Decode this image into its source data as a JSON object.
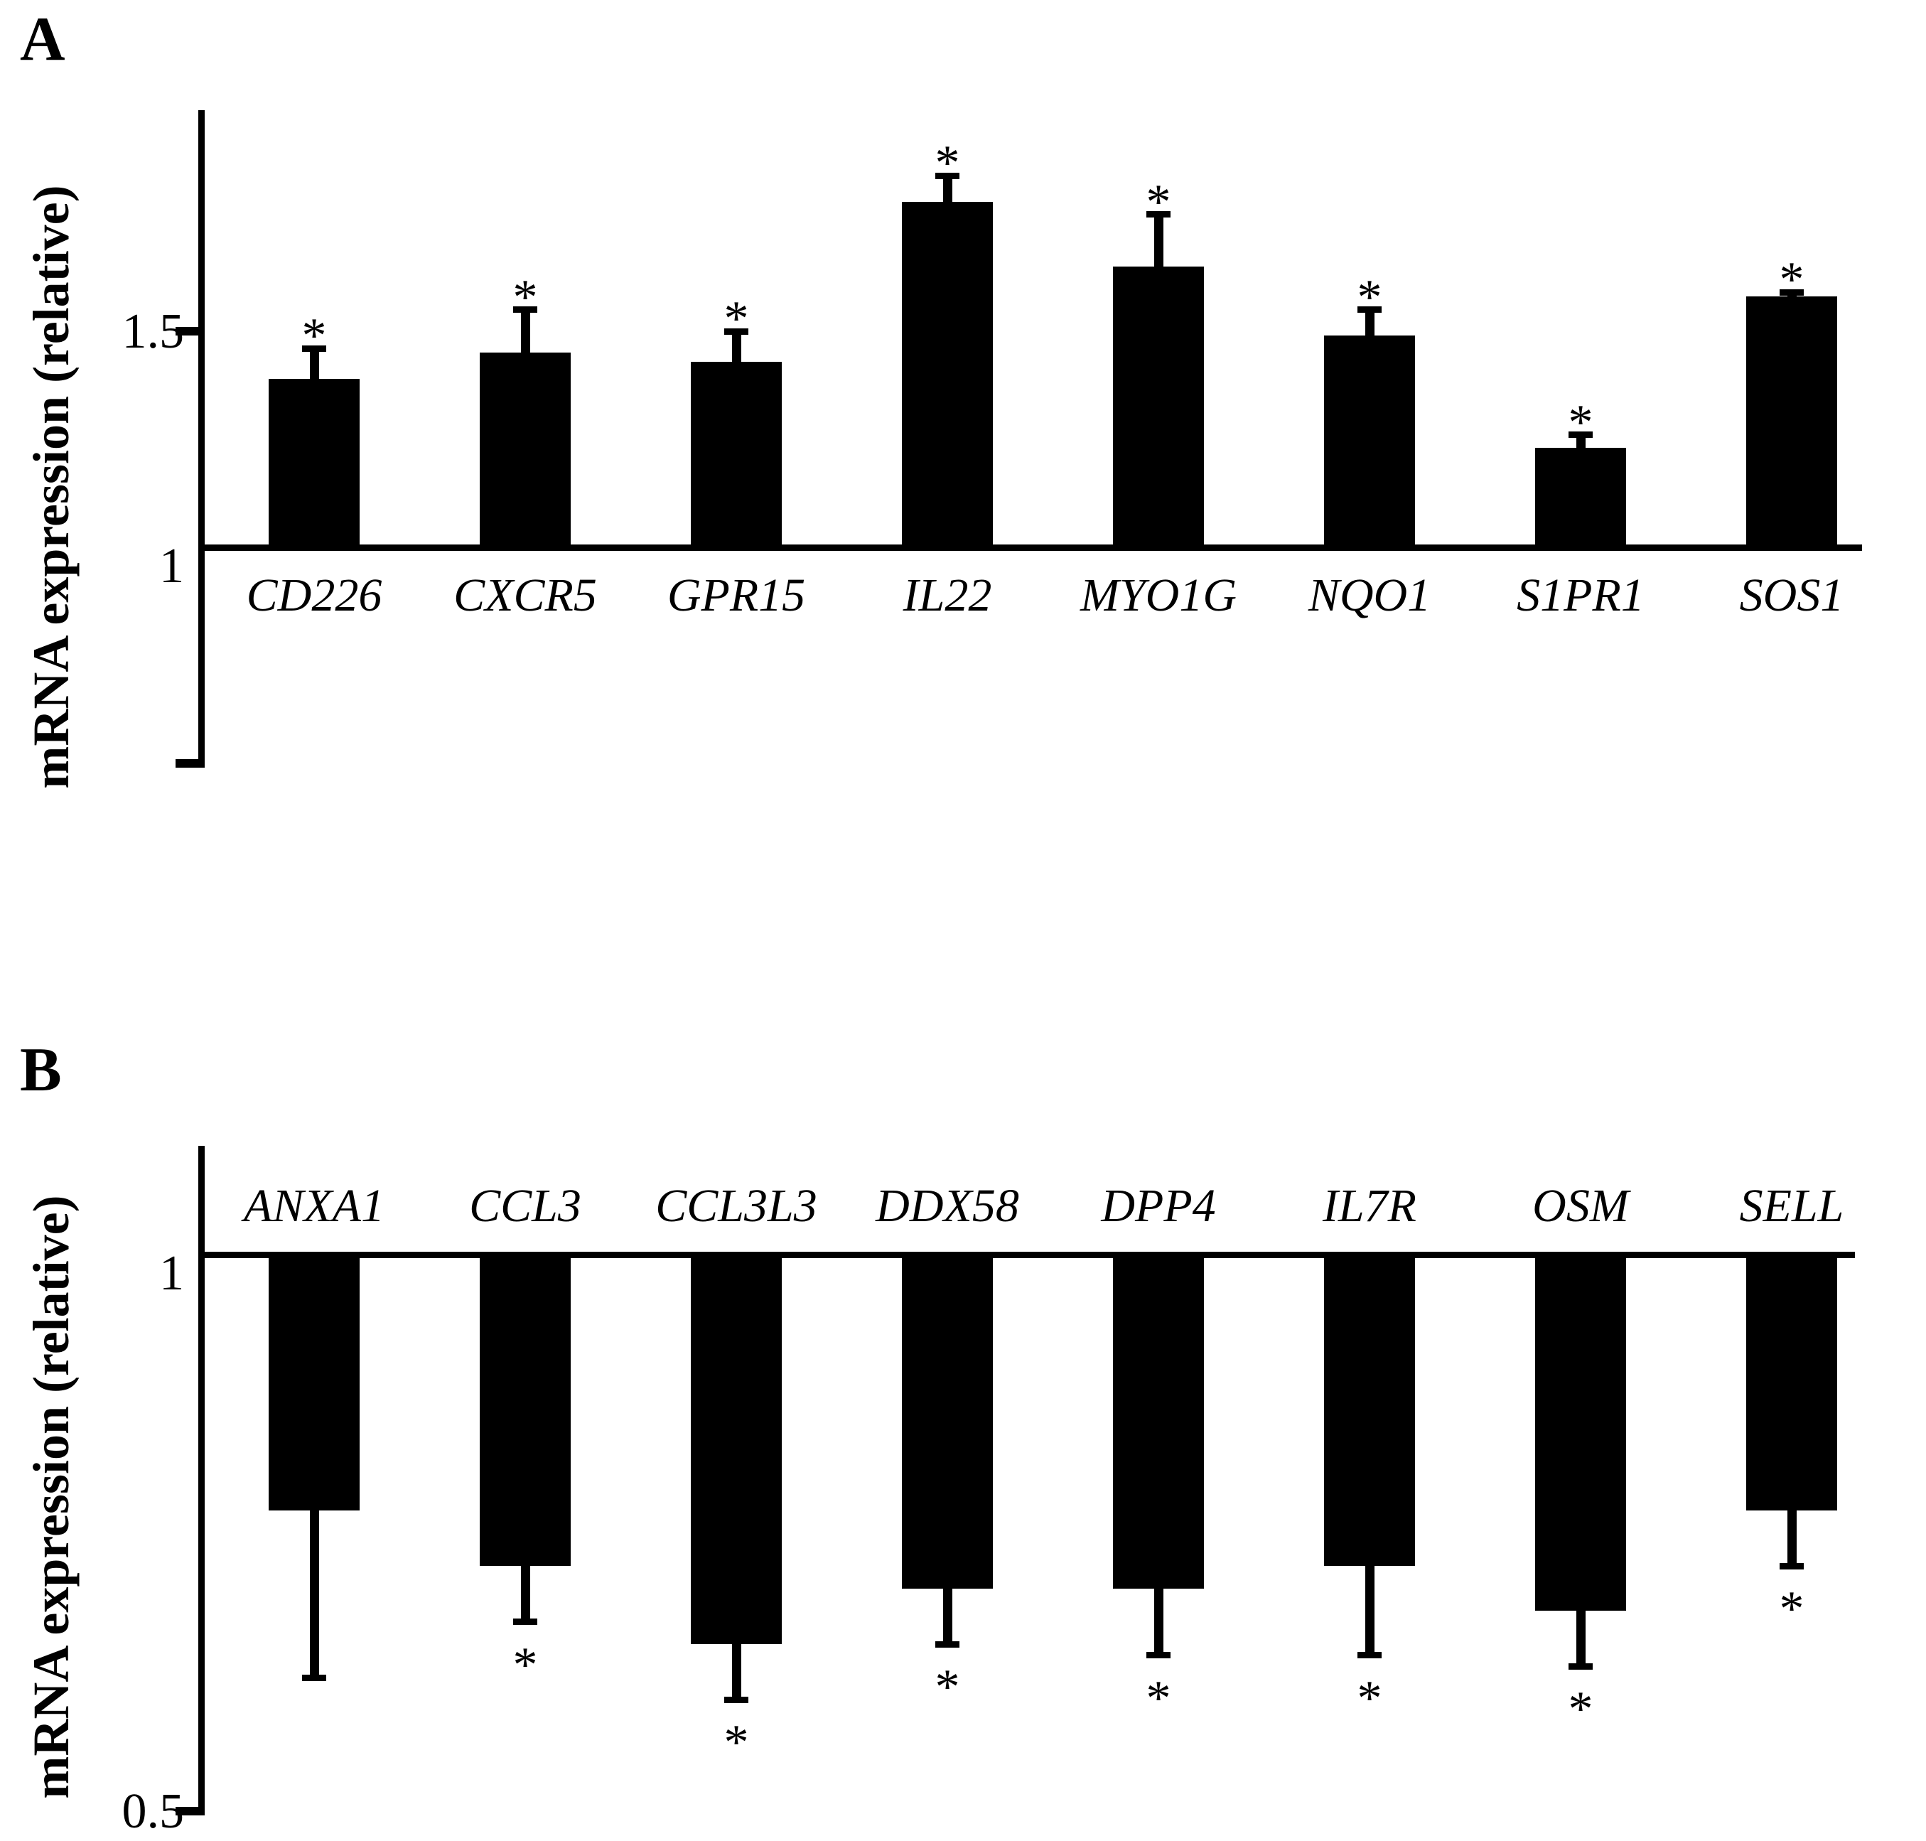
{
  "figure_title": "",
  "colors": {
    "bar": "#000000",
    "background": "#ffffff",
    "axis": "#000000"
  },
  "chart_data": [
    {
      "type": "bar",
      "panel": "A",
      "title": "",
      "xlabel": "",
      "ylabel": "mRNA expression (relative)",
      "categories": [
        "CD226",
        "CXCR5",
        "GPR15",
        "IL22",
        "MYO1G",
        "NQO1",
        "S1PR1",
        "SOS1"
      ],
      "values": [
        1.39,
        1.45,
        1.43,
        1.8,
        1.65,
        1.49,
        1.23,
        1.58
      ],
      "errors": [
        0.07,
        0.1,
        0.07,
        0.06,
        0.12,
        0.06,
        0.03,
        0.01
      ],
      "significant": [
        true,
        true,
        true,
        true,
        true,
        true,
        true,
        true
      ],
      "sig_symbol": "*",
      "bar_direction": "up",
      "error_direction": "up",
      "baseline": 1,
      "yticks": [
        {
          "label": "1.5",
          "value": 1.5,
          "dash": true
        },
        {
          "label": "1",
          "value": 1,
          "dash": false
        },
        {
          "label": "",
          "value": 0.5,
          "dash": true
        }
      ],
      "ylim": [
        0.5,
        2.0
      ],
      "grid": false,
      "legend_position": "none",
      "bar_color": "#000000"
    },
    {
      "type": "bar",
      "panel": "B",
      "title": "",
      "xlabel": "",
      "ylabel": "mRNA expression (relative)",
      "categories": [
        "ANXA1",
        "CCL3",
        "CCL3L3",
        "DDX58",
        "DPP4",
        "IL7R",
        "OSM",
        "SELL"
      ],
      "values": [
        0.77,
        0.72,
        0.65,
        0.7,
        0.7,
        0.72,
        0.68,
        0.77
      ],
      "errors": [
        0.15,
        0.05,
        0.05,
        0.05,
        0.06,
        0.08,
        0.05,
        0.05
      ],
      "significant": [
        false,
        true,
        true,
        true,
        true,
        true,
        true,
        true
      ],
      "sig_symbol": "*",
      "bar_direction": "down",
      "error_direction": "down",
      "baseline": 1,
      "yticks": [
        {
          "label": "1",
          "value": 1,
          "dash": false
        },
        {
          "label": "0.5",
          "value": 0.5,
          "dash": true
        }
      ],
      "ylim": [
        0.5,
        1.1
      ],
      "grid": false,
      "legend_position": "none",
      "bar_color": "#000000"
    }
  ]
}
